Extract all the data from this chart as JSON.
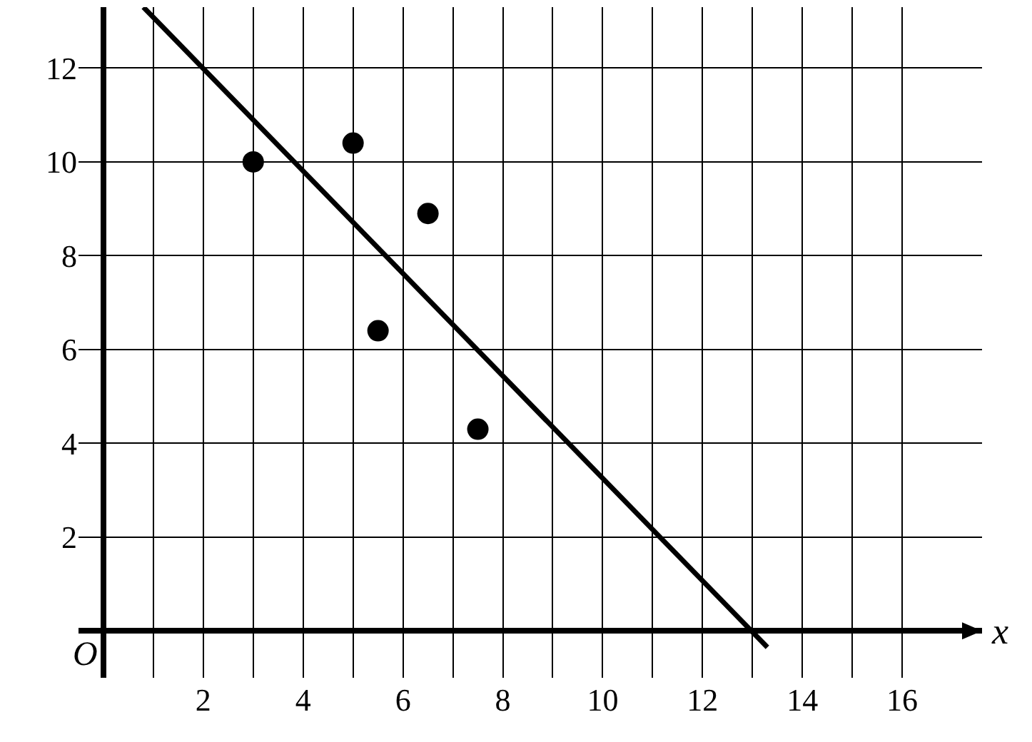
{
  "chart_data": {
    "type": "scatter",
    "xlabel": "x",
    "xlim": [
      -0.5,
      17.6
    ],
    "ylim": [
      -1,
      13.3
    ],
    "xticks": [
      {
        "value": 1,
        "label": null
      },
      2,
      {
        "value": 3,
        "label": null
      },
      4,
      {
        "value": 5,
        "label": null
      },
      6,
      {
        "value": 7,
        "label": null
      },
      8,
      {
        "value": 9,
        "label": null
      },
      10,
      {
        "value": 11,
        "label": null
      },
      12,
      {
        "value": 13,
        "label": null
      },
      14,
      {
        "value": 15,
        "label": null
      },
      16
    ],
    "yticks": [
      2,
      4,
      6,
      8,
      10,
      12
    ],
    "grid": true,
    "marker": "circle",
    "series": [
      {
        "color": "#000000",
        "x": [
          3,
          5,
          6.5,
          5.5,
          7.5
        ],
        "values": [
          10,
          10.4,
          8.9,
          6.4,
          4.3
        ]
      },
      {
        "type": "line",
        "color": "#000000",
        "line_style": "solid",
        "marker": "none",
        "x": [
          0.8,
          13.3
        ],
        "values": [
          13.3,
          -0.35
        ]
      }
    ],
    "annotations": [
      "O"
    ]
  }
}
